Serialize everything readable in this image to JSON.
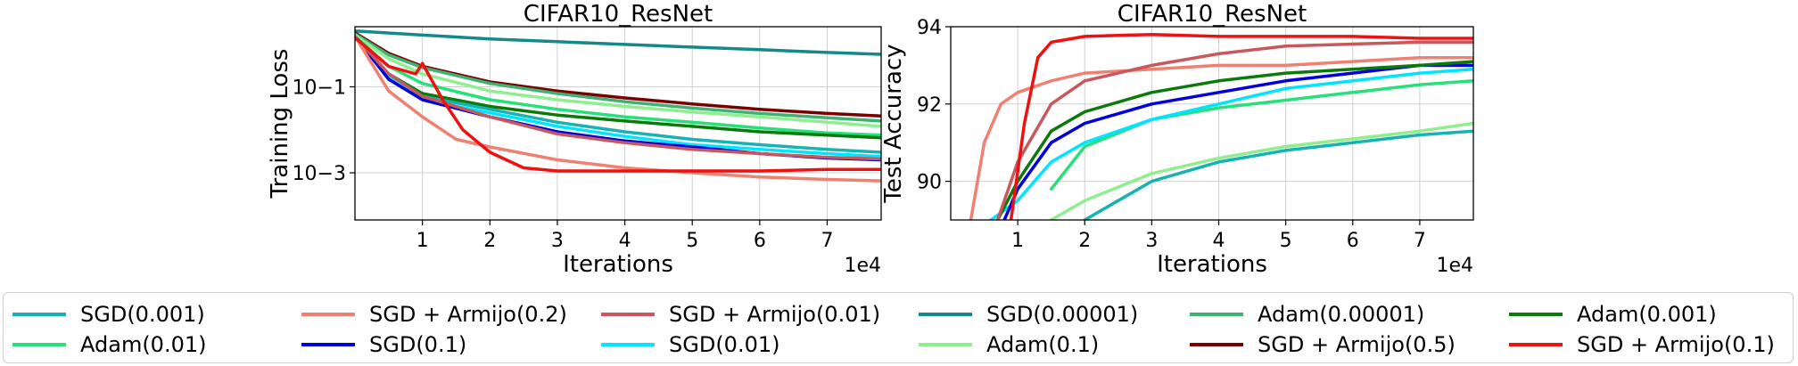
{
  "chart_data": [
    {
      "type": "line",
      "title": "CIFAR10_ResNet",
      "xlabel": "Iterations",
      "x_offset_label": "1e4",
      "ylabel": "Training Loss",
      "yscale": "log",
      "xlim": [
        0,
        7.8
      ],
      "ylim": [
        8e-05,
        2.5
      ],
      "xticks": [
        1,
        2,
        3,
        4,
        5,
        6,
        7
      ],
      "yticks": [
        {
          "value": 0.1,
          "label": "10−1"
        },
        {
          "value": 0.001,
          "label": "10−3"
        }
      ],
      "grid": true,
      "series": [
        {
          "name": "SGD(0.00001)",
          "color": "#138a87",
          "x": [
            0,
            1,
            2,
            3,
            4,
            5,
            6,
            7,
            7.8
          ],
          "values": [
            2.0,
            1.6,
            1.3,
            1.12,
            0.97,
            0.84,
            0.73,
            0.63,
            0.57
          ]
        },
        {
          "name": "SGD + Armijo(0.5)",
          "color": "#7a0000",
          "x": [
            0,
            0.5,
            1,
            2,
            3,
            4,
            5,
            6,
            7,
            7.8
          ],
          "values": [
            1.8,
            0.6,
            0.3,
            0.13,
            0.08,
            0.055,
            0.04,
            0.03,
            0.024,
            0.021
          ]
        },
        {
          "name": "Adam(0.00001)",
          "color": "#3cb371",
          "x": [
            0,
            0.5,
            1,
            2,
            3,
            4,
            5,
            6,
            7,
            7.8
          ],
          "values": [
            1.7,
            0.55,
            0.28,
            0.12,
            0.07,
            0.045,
            0.032,
            0.024,
            0.019,
            0.016
          ]
        },
        {
          "name": "Adam(0.1)",
          "color": "#90ee90",
          "x": [
            0,
            0.5,
            1,
            2,
            3,
            4,
            5,
            6,
            7,
            7.8
          ],
          "values": [
            1.6,
            0.45,
            0.2,
            0.08,
            0.05,
            0.035,
            0.026,
            0.02,
            0.015,
            0.012
          ]
        },
        {
          "name": "Adam(0.01)",
          "color": "#26e07a",
          "x": [
            0,
            0.5,
            1,
            2,
            3,
            4,
            5,
            6,
            7,
            7.8
          ],
          "values": [
            1.5,
            0.3,
            0.12,
            0.05,
            0.03,
            0.02,
            0.015,
            0.011,
            0.0085,
            0.0075
          ]
        },
        {
          "name": "Adam(0.001)",
          "color": "#0a7a0a",
          "x": [
            0,
            0.5,
            1,
            2,
            3,
            4,
            5,
            6,
            7,
            7.8
          ],
          "values": [
            1.5,
            0.2,
            0.07,
            0.035,
            0.022,
            0.016,
            0.012,
            0.009,
            0.0075,
            0.0065
          ]
        },
        {
          "name": "SGD(0.001)",
          "color": "#17b3b3",
          "x": [
            0,
            0.5,
            1,
            2,
            3,
            4,
            5,
            6,
            7,
            7.8
          ],
          "values": [
            1.5,
            0.2,
            0.06,
            0.03,
            0.015,
            0.009,
            0.006,
            0.0045,
            0.0035,
            0.003
          ]
        },
        {
          "name": "SGD(0.01)",
          "color": "#00e5ff",
          "x": [
            0,
            0.5,
            1,
            2,
            3,
            4,
            5,
            6,
            7,
            7.8
          ],
          "values": [
            1.5,
            0.18,
            0.05,
            0.025,
            0.012,
            0.007,
            0.0045,
            0.0035,
            0.0028,
            0.0024
          ]
        },
        {
          "name": "SGD(0.1)",
          "color": "#0000dd",
          "x": [
            0,
            0.5,
            1,
            2,
            3,
            4,
            5,
            6,
            7,
            7.8
          ],
          "values": [
            1.5,
            0.15,
            0.05,
            0.02,
            0.009,
            0.0055,
            0.004,
            0.0028,
            0.0022,
            0.002
          ]
        },
        {
          "name": "SGD + Armijo(0.01)",
          "color": "#c8585b",
          "x": [
            0,
            0.5,
            1,
            2,
            3,
            4,
            5,
            6,
            7,
            7.8
          ],
          "values": [
            1.5,
            0.2,
            0.06,
            0.02,
            0.008,
            0.005,
            0.0035,
            0.0028,
            0.0023,
            0.0021
          ]
        },
        {
          "name": "SGD + Armijo(0.2)",
          "color": "#f08070",
          "x": [
            0,
            0.5,
            1,
            1.5,
            2,
            3,
            4,
            5,
            6,
            7,
            7.8
          ],
          "values": [
            1.5,
            0.08,
            0.02,
            0.006,
            0.004,
            0.002,
            0.0013,
            0.001,
            0.0008,
            0.0007,
            0.00065
          ]
        },
        {
          "name": "SGD + Armijo(0.1)",
          "color": "#ee1111",
          "x": [
            0,
            0.5,
            0.9,
            1.0,
            1.3,
            1.6,
            2,
            2.5,
            3,
            4,
            5,
            6,
            7,
            7.8
          ],
          "values": [
            1.4,
            0.3,
            0.2,
            0.35,
            0.05,
            0.01,
            0.003,
            0.0013,
            0.0011,
            0.0011,
            0.0011,
            0.0011,
            0.0012,
            0.0012
          ]
        }
      ]
    },
    {
      "type": "line",
      "title": "CIFAR10_ResNet",
      "xlabel": "Iterations",
      "x_offset_label": "1e4",
      "ylabel": "Test Accuracy",
      "xlim": [
        0,
        7.8
      ],
      "ylim": [
        89,
        94
      ],
      "xticks": [
        1,
        2,
        3,
        4,
        5,
        6,
        7
      ],
      "yticks": [
        {
          "value": 90,
          "label": "90"
        },
        {
          "value": 92,
          "label": "92"
        },
        {
          "value": 94,
          "label": "94"
        }
      ],
      "grid": true,
      "series": [
        {
          "name": "SGD(0.001)",
          "color": "#17b3b3",
          "x": [
            2.0,
            2.5,
            3,
            4,
            5,
            6,
            7,
            7.8
          ],
          "values": [
            89.0,
            89.5,
            90.0,
            90.5,
            90.8,
            91.0,
            91.2,
            91.3
          ]
        },
        {
          "name": "Adam(0.1)",
          "color": "#90ee90",
          "x": [
            1.5,
            2,
            3,
            4,
            5,
            6,
            7,
            7.8
          ],
          "values": [
            89.0,
            89.5,
            90.2,
            90.6,
            90.9,
            91.1,
            91.3,
            91.5
          ]
        },
        {
          "name": "Adam(0.01)",
          "color": "#26e07a",
          "x": [
            1.5,
            2,
            3,
            4,
            5,
            6,
            7,
            7.8
          ],
          "values": [
            89.8,
            90.9,
            91.6,
            91.9,
            92.1,
            92.3,
            92.5,
            92.6
          ]
        },
        {
          "name": "SGD(0.01)",
          "color": "#00e5ff",
          "x": [
            0.6,
            1,
            1.5,
            2,
            3,
            4,
            5,
            6,
            7,
            7.8
          ],
          "values": [
            89.0,
            89.5,
            90.5,
            91.0,
            91.6,
            92.0,
            92.4,
            92.6,
            92.8,
            92.9
          ]
        },
        {
          "name": "SGD(0.1)",
          "color": "#0000dd",
          "x": [
            0.8,
            1,
            1.5,
            2,
            3,
            4,
            5,
            6,
            7,
            7.8
          ],
          "values": [
            89.0,
            89.8,
            91.0,
            91.5,
            92.0,
            92.3,
            92.6,
            92.8,
            93.0,
            93.0
          ]
        },
        {
          "name": "Adam(0.001)",
          "color": "#0a7a0a",
          "x": [
            0.7,
            1,
            1.5,
            2,
            3,
            4,
            5,
            6,
            7,
            7.8
          ],
          "values": [
            89.0,
            90.0,
            91.3,
            91.8,
            92.3,
            92.6,
            92.8,
            92.9,
            93.0,
            93.1
          ]
        },
        {
          "name": "SGD + Armijo(0.2)",
          "color": "#f08070",
          "x": [
            0.3,
            0.5,
            0.75,
            1,
            1.5,
            2,
            3,
            4,
            5,
            6,
            7,
            7.8
          ],
          "values": [
            89.0,
            91.0,
            92.0,
            92.3,
            92.6,
            92.8,
            92.9,
            93.0,
            93.0,
            93.1,
            93.2,
            93.2
          ]
        },
        {
          "name": "SGD + Armijo(0.01)",
          "color": "#c8585b",
          "x": [
            0.7,
            1,
            1.5,
            2,
            3,
            4,
            5,
            6,
            7,
            7.8
          ],
          "values": [
            89.0,
            90.5,
            92.0,
            92.6,
            93.0,
            93.3,
            93.5,
            93.55,
            93.6,
            93.6
          ]
        },
        {
          "name": "SGD + Armijo(0.1)",
          "color": "#ee1111",
          "x": [
            0.9,
            1.1,
            1.3,
            1.5,
            2,
            3,
            4,
            5,
            6,
            7,
            7.8
          ],
          "values": [
            89.0,
            91.5,
            93.2,
            93.6,
            93.75,
            93.8,
            93.75,
            93.75,
            93.75,
            93.7,
            93.7
          ]
        }
      ]
    }
  ],
  "legend": {
    "items": [
      {
        "label": "SGD(0.001)",
        "color": "#17b3b3"
      },
      {
        "label": "SGD + Armijo(0.2)",
        "color": "#f08070"
      },
      {
        "label": "SGD + Armijo(0.01)",
        "color": "#c8585b"
      },
      {
        "label": "SGD(0.00001)",
        "color": "#138a87"
      },
      {
        "label": "Adam(0.00001)",
        "color": "#3cb371"
      },
      {
        "label": "Adam(0.001)",
        "color": "#0a7a0a"
      },
      {
        "label": "Adam(0.01)",
        "color": "#26e07a"
      },
      {
        "label": "SGD(0.1)",
        "color": "#0000dd"
      },
      {
        "label": "SGD(0.01)",
        "color": "#00e5ff"
      },
      {
        "label": "Adam(0.1)",
        "color": "#90ee90"
      },
      {
        "label": "SGD + Armijo(0.5)",
        "color": "#7a0000"
      },
      {
        "label": "SGD + Armijo(0.1)",
        "color": "#ee1111"
      }
    ]
  }
}
